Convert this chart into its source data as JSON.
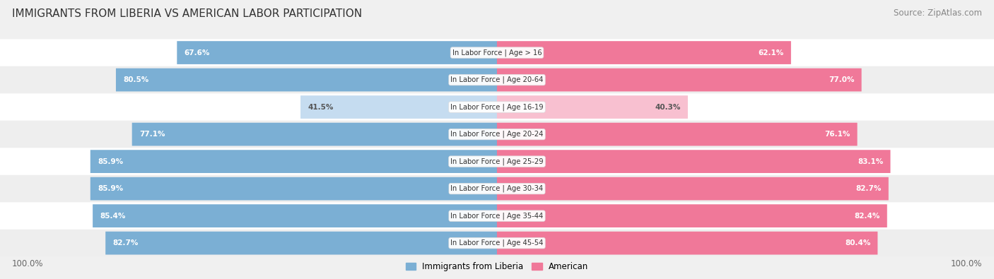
{
  "title": "IMMIGRANTS FROM LIBERIA VS AMERICAN LABOR PARTICIPATION",
  "source": "Source: ZipAtlas.com",
  "categories": [
    "In Labor Force | Age > 16",
    "In Labor Force | Age 20-64",
    "In Labor Force | Age 16-19",
    "In Labor Force | Age 20-24",
    "In Labor Force | Age 25-29",
    "In Labor Force | Age 30-34",
    "In Labor Force | Age 35-44",
    "In Labor Force | Age 45-54"
  ],
  "liberia_values": [
    67.6,
    80.5,
    41.5,
    77.1,
    85.9,
    85.9,
    85.4,
    82.7
  ],
  "american_values": [
    62.1,
    77.0,
    40.3,
    76.1,
    83.1,
    82.7,
    82.4,
    80.4
  ],
  "liberia_color": "#7BAFD4",
  "liberia_color_light": "#C5DCF0",
  "american_color": "#F07899",
  "american_color_light": "#F8C0D0",
  "row_bg_color_even": "#ffffff",
  "row_bg_color_odd": "#eeeeee",
  "max_value": 100.0,
  "label_fontsize": 8.5,
  "title_fontsize": 11,
  "source_fontsize": 8.5,
  "footer_label_fontsize": 8.5
}
